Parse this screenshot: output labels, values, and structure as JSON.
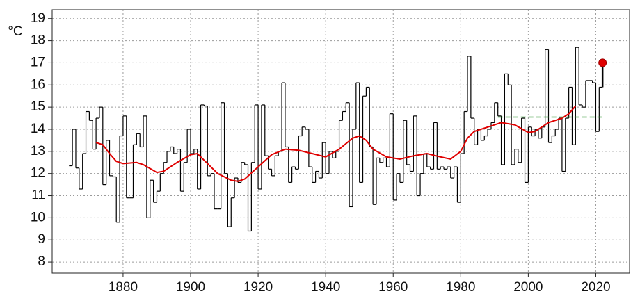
{
  "chart_data": {
    "type": "line",
    "y_label": "°C",
    "xlim": [
      1859,
      2030
    ],
    "ylim": [
      7.5,
      19.4
    ],
    "xticks": [
      1880,
      1900,
      1920,
      1940,
      1960,
      1980,
      2000,
      2020
    ],
    "yticks": [
      8,
      9,
      10,
      11,
      12,
      13,
      14,
      15,
      16,
      17,
      18,
      19
    ],
    "grid": true,
    "series": [
      {
        "color": "#000000",
        "style": "step",
        "x": [
          1864,
          1865,
          1866,
          1867,
          1868,
          1869,
          1870,
          1871,
          1872,
          1873,
          1874,
          1875,
          1876,
          1877,
          1878,
          1879,
          1880,
          1881,
          1882,
          1883,
          1884,
          1885,
          1886,
          1887,
          1888,
          1889,
          1890,
          1891,
          1892,
          1893,
          1894,
          1895,
          1896,
          1897,
          1898,
          1899,
          1900,
          1901,
          1902,
          1903,
          1904,
          1905,
          1906,
          1907,
          1908,
          1909,
          1910,
          1911,
          1912,
          1913,
          1914,
          1915,
          1916,
          1917,
          1918,
          1919,
          1920,
          1921,
          1922,
          1923,
          1924,
          1925,
          1926,
          1927,
          1928,
          1929,
          1930,
          1931,
          1932,
          1933,
          1934,
          1935,
          1936,
          1937,
          1938,
          1939,
          1940,
          1941,
          1942,
          1943,
          1944,
          1945,
          1946,
          1947,
          1948,
          1949,
          1950,
          1951,
          1952,
          1953,
          1954,
          1955,
          1956,
          1957,
          1958,
          1959,
          1960,
          1961,
          1962,
          1963,
          1964,
          1965,
          1966,
          1967,
          1968,
          1969,
          1970,
          1971,
          1972,
          1973,
          1974,
          1975,
          1976,
          1977,
          1978,
          1979,
          1980,
          1981,
          1982,
          1983,
          1984,
          1985,
          1986,
          1987,
          1988,
          1989,
          1990,
          1991,
          1992,
          1993,
          1994,
          1995,
          1996,
          1997,
          1998,
          1999,
          2000,
          2001,
          2002,
          2003,
          2004,
          2005,
          2006,
          2007,
          2008,
          2009,
          2010,
          2011,
          2012,
          2013,
          2014,
          2015,
          2016,
          2017,
          2018,
          2019,
          2020,
          2021
        ],
        "values": [
          12.35,
          14.0,
          12.25,
          11.3,
          12.9,
          14.8,
          14.4,
          13.1,
          14.5,
          15.0,
          11.5,
          13.5,
          11.9,
          11.85,
          9.8,
          13.7,
          14.6,
          10.9,
          10.9,
          13.3,
          13.8,
          13.2,
          14.6,
          10.0,
          11.7,
          10.7,
          11.2,
          12.0,
          12.5,
          13.0,
          13.2,
          12.9,
          13.1,
          11.2,
          12.5,
          14.0,
          12.9,
          13.1,
          11.3,
          15.1,
          15.05,
          11.9,
          12.0,
          10.4,
          10.4,
          15.2,
          12.0,
          9.6,
          10.9,
          11.8,
          11.6,
          12.5,
          12.4,
          9.4,
          12.5,
          15.1,
          11.3,
          15.1,
          12.8,
          12.2,
          11.9,
          12.8,
          13.0,
          16.1,
          13.2,
          11.6,
          12.3,
          12.2,
          13.7,
          14.1,
          14.0,
          12.3,
          11.6,
          12.1,
          11.8,
          13.4,
          12.0,
          13.0,
          12.7,
          13.0,
          14.4,
          14.8,
          15.2,
          10.5,
          14.0,
          16.1,
          11.6,
          15.5,
          15.9,
          13.2,
          10.6,
          12.7,
          12.5,
          12.7,
          12.3,
          14.7,
          10.8,
          12.0,
          11.6,
          14.4,
          12.4,
          12.1,
          14.6,
          11.0,
          12.0,
          12.9,
          12.3,
          12.2,
          14.3,
          12.2,
          12.3,
          12.2,
          12.3,
          11.8,
          12.3,
          10.7,
          12.9,
          14.8,
          17.3,
          14.5,
          13.3,
          14.0,
          13.5,
          13.7,
          14.0,
          14.3,
          15.2,
          14.6,
          12.4,
          16.5,
          16.0,
          12.4,
          13.1,
          12.5,
          14.5,
          11.6,
          14.1,
          13.7,
          14.0,
          13.6,
          14.1,
          17.6,
          13.4,
          13.7,
          14.0,
          14.5,
          12.1,
          14.5,
          15.9,
          13.3,
          17.7,
          15.1,
          15.0,
          16.2,
          16.2,
          16.1,
          13.9,
          15.9
        ]
      },
      {
        "color": "#e00000",
        "style": "smooth",
        "x": [
          1872,
          1874,
          1876,
          1878,
          1880,
          1884,
          1886,
          1890,
          1892,
          1896,
          1900,
          1902,
          1904,
          1908,
          1912,
          1914,
          1916,
          1920,
          1924,
          1928,
          1932,
          1936,
          1940,
          1944,
          1948,
          1950,
          1952,
          1954,
          1958,
          1962,
          1966,
          1970,
          1974,
          1977,
          1980,
          1982,
          1984,
          1988,
          1992,
          1996,
          2000,
          2002,
          2006,
          2010,
          2012,
          2014
        ],
        "values": [
          13.4,
          13.3,
          12.9,
          12.55,
          12.45,
          12.5,
          12.4,
          12.05,
          12.1,
          12.5,
          12.85,
          12.9,
          12.6,
          12.0,
          11.7,
          11.65,
          11.75,
          12.3,
          12.85,
          13.1,
          13.05,
          12.9,
          12.75,
          13.1,
          13.6,
          13.7,
          13.5,
          13.1,
          12.75,
          12.65,
          12.8,
          12.9,
          12.75,
          12.65,
          13.0,
          13.6,
          13.9,
          14.1,
          14.3,
          14.2,
          13.85,
          13.9,
          14.3,
          14.5,
          14.7,
          15.05
        ]
      },
      {
        "color": "#3a9a3a",
        "style": "dashed",
        "x": [
          1991,
          2022
        ],
        "values": [
          14.55,
          14.55
        ]
      },
      {
        "color": "#e00000",
        "style": "point",
        "x": [
          2022
        ],
        "values": [
          17.0
        ]
      }
    ]
  }
}
